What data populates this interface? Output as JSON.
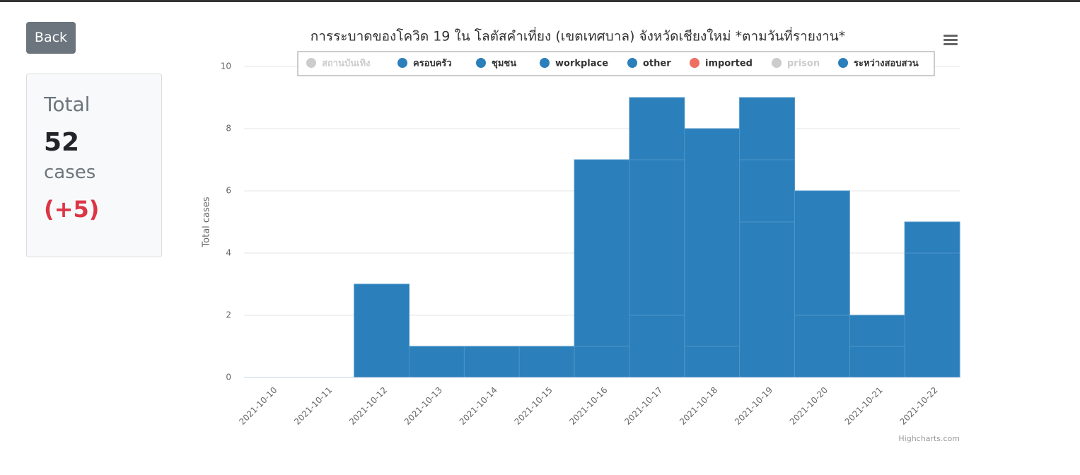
{
  "back_button": "Back",
  "summary": {
    "label": "Total",
    "count": 52,
    "unit": "cases",
    "change": "(+5)"
  },
  "credits": "Highcharts.com",
  "chart_data": {
    "type": "stacked_bar",
    "title": "การระบาดของโควิด 19 ใน โลตัสคำเที่ยง (เขตเทศบาล) จังหวัดเชียงใหม่ *ตามวันที่รายงาน*",
    "y_label": "Total cases",
    "categories": [
      "2021-10-10",
      "2021-10-11",
      "2021-10-12",
      "2021-10-13",
      "2021-10-14",
      "2021-10-15",
      "2021-10-16",
      "2021-10-17",
      "2021-10-18",
      "2021-10-19",
      "2021-10-20",
      "2021-10-21",
      "2021-10-22"
    ],
    "series": [
      {
        "name": "สถานบันเทิง",
        "color": "#cccccc",
        "visible": false,
        "values": [
          null,
          null,
          null,
          null,
          null,
          null,
          null,
          null,
          null,
          null,
          null,
          null,
          null
        ]
      },
      {
        "name": "ครอบครัว",
        "color": "#2b7fba",
        "visible": true,
        "values": [
          null,
          null,
          3,
          1,
          1,
          1,
          1,
          2,
          1,
          5,
          2,
          1,
          4
        ]
      },
      {
        "name": "ชุมชน",
        "color": "#2b7fba",
        "visible": true,
        "values": [
          null,
          null,
          null,
          null,
          null,
          null,
          6,
          5,
          7,
          2,
          4,
          1,
          1
        ]
      },
      {
        "name": "workplace",
        "color": "#2b7fba",
        "visible": true,
        "values": [
          null,
          null,
          null,
          null,
          null,
          null,
          null,
          2,
          null,
          2,
          null,
          null,
          null
        ]
      },
      {
        "name": "other",
        "color": "#2b7fba",
        "visible": true,
        "values": [
          null,
          null,
          null,
          null,
          null,
          null,
          null,
          null,
          null,
          null,
          null,
          null,
          null
        ]
      },
      {
        "name": "imported",
        "color": "#ec6f61",
        "visible": true,
        "values": [
          null,
          null,
          null,
          null,
          null,
          null,
          null,
          null,
          null,
          null,
          null,
          null,
          null
        ]
      },
      {
        "name": "prison",
        "color": "#cccccc",
        "visible": false,
        "values": [
          null,
          null,
          null,
          null,
          null,
          null,
          null,
          null,
          null,
          null,
          null,
          null,
          null
        ]
      },
      {
        "name": "ระหว่างสอบสวน",
        "color": "#2b7fba",
        "visible": true,
        "values": [
          null,
          null,
          null,
          null,
          null,
          null,
          null,
          null,
          null,
          null,
          null,
          null,
          null
        ]
      }
    ],
    "ylim": [
      0,
      10
    ],
    "yticks": [
      0,
      2,
      4,
      6,
      8,
      10
    ],
    "grid": true,
    "legend": "top"
  }
}
